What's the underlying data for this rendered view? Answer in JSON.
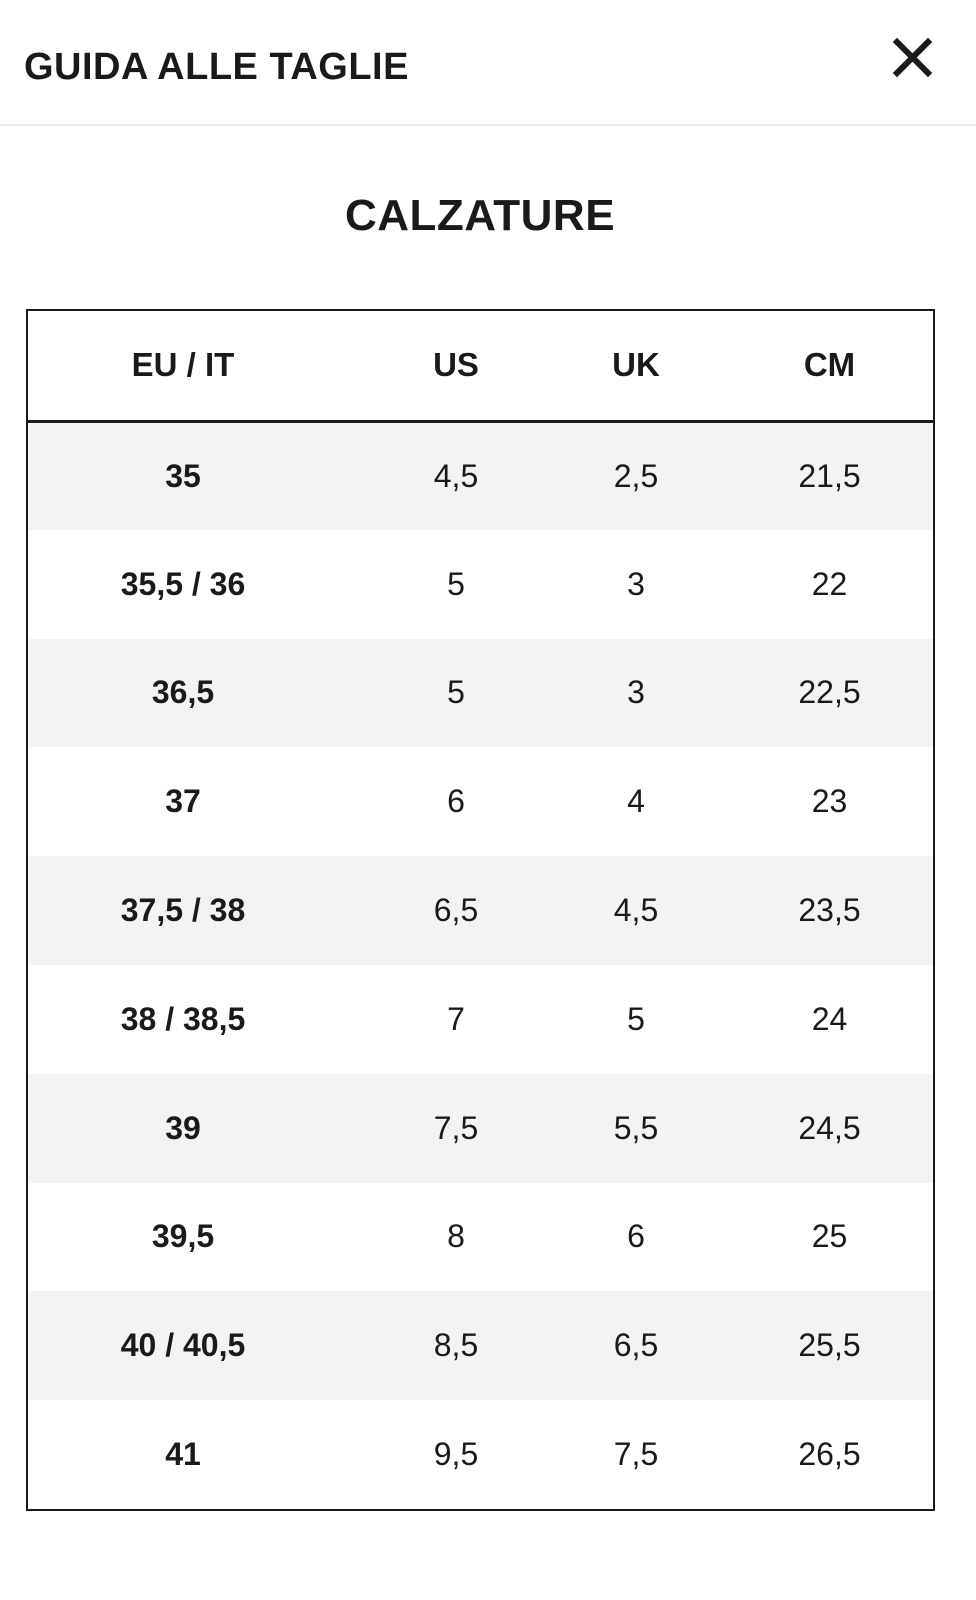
{
  "header": {
    "title": "GUIDA ALLE TAGLIE",
    "close_icon": "close-icon"
  },
  "section": {
    "title": "CALZATURE"
  },
  "table": {
    "columns": [
      "EU / IT",
      "US",
      "UK",
      "CM"
    ],
    "rows": [
      [
        "35",
        "4,5",
        "2,5",
        "21,5"
      ],
      [
        "35,5 / 36",
        "5",
        "3",
        "22"
      ],
      [
        "36,5",
        "5",
        "3",
        "22,5"
      ],
      [
        "37",
        "6",
        "4",
        "23"
      ],
      [
        "37,5 / 38",
        "6,5",
        "4,5",
        "23,5"
      ],
      [
        "38 / 38,5",
        "7",
        "5",
        "24"
      ],
      [
        "39",
        "7,5",
        "5,5",
        "24,5"
      ],
      [
        "39,5",
        "8",
        "6",
        "25"
      ],
      [
        "40 / 40,5",
        "8,5",
        "6,5",
        "25,5"
      ],
      [
        "41",
        "9,5",
        "7,5",
        "26,5"
      ]
    ]
  },
  "colors": {
    "text": "#1a1a1a",
    "row_alt": "#f3f3f3",
    "border": "#1a1a1a",
    "divider": "#ececec"
  }
}
